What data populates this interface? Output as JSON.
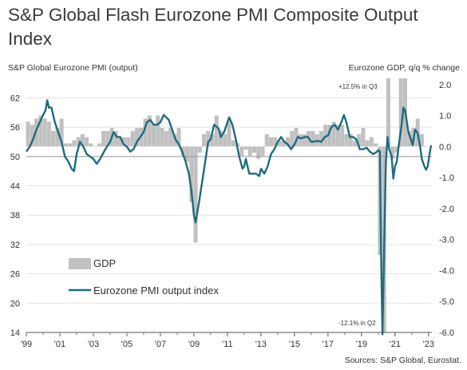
{
  "title": "S&P Global Flash Eurozone PMI Composite Output Index",
  "source": "Sources: S&P Global, Eurostat.",
  "colors": {
    "pmi_line": "#1f6b7e",
    "gdp_bars": "#c0c0c0",
    "text": "#333333"
  },
  "chart_data": {
    "type": "bar+line",
    "title": "S&P Global Flash Eurozone PMI Composite Output Index",
    "left_axis_label": "S&P Global Eurozone PMI (output)",
    "right_axis_label": "Eurozone GDP, q/q % change",
    "left_ticks": [
      "62",
      "56",
      "50",
      "44",
      "38",
      "32",
      "26",
      "20",
      "14"
    ],
    "right_ticks": [
      "2.0",
      "1.0",
      "0.0",
      "-1.0",
      "-2.0",
      "-3.0",
      "-4.0",
      "-5.0",
      "-6.0"
    ],
    "x_ticks": [
      "'99",
      "'01",
      "'03",
      "'05",
      "'07",
      "'09",
      "'11",
      "'13",
      "'15",
      "'17",
      "'19",
      "'21",
      "'23"
    ],
    "left_range": [
      14,
      66
    ],
    "right_range": [
      -6.0,
      2.2
    ],
    "x_range": [
      1999,
      2023.2
    ],
    "annotations": {
      "top": "+12.5% in Q3",
      "bottom": "-12.1% in Q2"
    },
    "legend": {
      "bars": "GDP",
      "line": "Eurozone PMI output index",
      "position": "bottom-left"
    },
    "series_line": {
      "name": "Eurozone PMI output index",
      "points": [
        [
          1999.0,
          51.0
        ],
        [
          1999.2,
          52.0
        ],
        [
          1999.4,
          53.5
        ],
        [
          1999.6,
          55.5
        ],
        [
          1999.8,
          57.0
        ],
        [
          2000.0,
          58.5
        ],
        [
          2000.15,
          59.5
        ],
        [
          2000.25,
          61.5
        ],
        [
          2000.35,
          60.0
        ],
        [
          2000.5,
          60.0
        ],
        [
          2000.7,
          57.0
        ],
        [
          2000.9,
          55.0
        ],
        [
          2001.1,
          53.0
        ],
        [
          2001.3,
          50.0
        ],
        [
          2001.5,
          49.0
        ],
        [
          2001.7,
          47.5
        ],
        [
          2001.85,
          47.0
        ],
        [
          2002.0,
          50.5
        ],
        [
          2002.2,
          53.0
        ],
        [
          2002.4,
          52.0
        ],
        [
          2002.6,
          50.5
        ],
        [
          2002.8,
          50.0
        ],
        [
          2003.0,
          49.5
        ],
        [
          2003.2,
          48.5
        ],
        [
          2003.4,
          49.5
        ],
        [
          2003.6,
          50.8
        ],
        [
          2003.8,
          52.0
        ],
        [
          2004.0,
          53.0
        ],
        [
          2004.2,
          55.0
        ],
        [
          2004.4,
          54.0
        ],
        [
          2004.6,
          54.0
        ],
        [
          2004.8,
          52.5
        ],
        [
          2005.0,
          52.0
        ],
        [
          2005.2,
          51.0
        ],
        [
          2005.4,
          51.5
        ],
        [
          2005.6,
          53.0
        ],
        [
          2005.8,
          54.0
        ],
        [
          2006.0,
          55.0
        ],
        [
          2006.2,
          57.0
        ],
        [
          2006.4,
          57.5
        ],
        [
          2006.6,
          56.5
        ],
        [
          2006.8,
          56.5
        ],
        [
          2007.0,
          57.0
        ],
        [
          2007.2,
          58.5
        ],
        [
          2007.35,
          58.0
        ],
        [
          2007.5,
          57.5
        ],
        [
          2007.7,
          55.5
        ],
        [
          2007.9,
          53.5
        ],
        [
          2008.1,
          52.5
        ],
        [
          2008.3,
          51.0
        ],
        [
          2008.5,
          49.0
        ],
        [
          2008.7,
          46.5
        ],
        [
          2008.85,
          43.0
        ],
        [
          2009.0,
          38.0
        ],
        [
          2009.1,
          36.5
        ],
        [
          2009.3,
          40.5
        ],
        [
          2009.5,
          45.0
        ],
        [
          2009.7,
          49.5
        ],
        [
          2009.85,
          53.0
        ],
        [
          2010.0,
          53.5
        ],
        [
          2010.2,
          56.5
        ],
        [
          2010.4,
          56.0
        ],
        [
          2010.5,
          55.5
        ],
        [
          2010.6,
          54.0
        ],
        [
          2010.8,
          55.0
        ],
        [
          2011.0,
          57.0
        ],
        [
          2011.1,
          58.0
        ],
        [
          2011.3,
          56.5
        ],
        [
          2011.5,
          53.5
        ],
        [
          2011.7,
          50.0
        ],
        [
          2011.9,
          47.5
        ],
        [
          2012.0,
          48.0
        ],
        [
          2012.1,
          49.5
        ],
        [
          2012.3,
          46.5
        ],
        [
          2012.5,
          46.5
        ],
        [
          2012.7,
          46.5
        ],
        [
          2012.9,
          46.0
        ],
        [
          2013.0,
          47.5
        ],
        [
          2013.2,
          46.5
        ],
        [
          2013.4,
          48.0
        ],
        [
          2013.6,
          50.5
        ],
        [
          2013.8,
          51.5
        ],
        [
          2014.0,
          53.0
        ],
        [
          2014.2,
          54.0
        ],
        [
          2014.4,
          53.0
        ],
        [
          2014.6,
          52.5
        ],
        [
          2014.8,
          51.5
        ],
        [
          2015.0,
          52.5
        ],
        [
          2015.2,
          54.0
        ],
        [
          2015.4,
          53.7
        ],
        [
          2015.6,
          54.0
        ],
        [
          2015.8,
          54.0
        ],
        [
          2016.0,
          53.0
        ],
        [
          2016.2,
          53.1
        ],
        [
          2016.4,
          53.2
        ],
        [
          2016.6,
          53.0
        ],
        [
          2016.8,
          54.0
        ],
        [
          2017.0,
          54.3
        ],
        [
          2017.2,
          56.0
        ],
        [
          2017.4,
          56.5
        ],
        [
          2017.6,
          55.5
        ],
        [
          2017.8,
          57.0
        ],
        [
          2017.95,
          58.5
        ],
        [
          2018.1,
          57.0
        ],
        [
          2018.3,
          54.0
        ],
        [
          2018.5,
          54.0
        ],
        [
          2018.7,
          53.5
        ],
        [
          2018.9,
          51.5
        ],
        [
          2019.1,
          51.5
        ],
        [
          2019.3,
          51.8
        ],
        [
          2019.5,
          51.0
        ],
        [
          2019.7,
          50.5
        ],
        [
          2019.9,
          50.9
        ],
        [
          2020.0,
          51.3
        ],
        [
          2020.1,
          51.0
        ],
        [
          2020.17,
          29.5
        ],
        [
          2020.25,
          13.6
        ],
        [
          2020.35,
          31.0
        ],
        [
          2020.45,
          48.5
        ],
        [
          2020.55,
          54.0
        ],
        [
          2020.65,
          51.5
        ],
        [
          2020.8,
          50.0
        ],
        [
          2020.9,
          45.5
        ],
        [
          2021.0,
          48.0
        ],
        [
          2021.1,
          48.8
        ],
        [
          2021.25,
          53.0
        ],
        [
          2021.4,
          56.5
        ],
        [
          2021.5,
          60.0
        ],
        [
          2021.6,
          59.5
        ],
        [
          2021.8,
          55.0
        ],
        [
          2021.95,
          53.5
        ],
        [
          2022.05,
          52.3
        ],
        [
          2022.2,
          55.5
        ],
        [
          2022.35,
          54.8
        ],
        [
          2022.5,
          52.0
        ],
        [
          2022.6,
          49.5
        ],
        [
          2022.75,
          48.0
        ],
        [
          2022.85,
          47.3
        ],
        [
          2022.95,
          48.0
        ],
        [
          2023.05,
          50.3
        ],
        [
          2023.15,
          52.3
        ]
      ]
    },
    "series_bars": {
      "name": "GDP",
      "points": [
        [
          1999.1,
          0.8
        ],
        [
          1999.35,
          0.7
        ],
        [
          1999.6,
          0.9
        ],
        [
          1999.85,
          1.0
        ],
        [
          2000.1,
          0.9
        ],
        [
          2000.35,
          0.8
        ],
        [
          2000.6,
          0.5
        ],
        [
          2000.85,
          0.6
        ],
        [
          2001.1,
          0.9
        ],
        [
          2001.35,
          0.1
        ],
        [
          2001.6,
          0.1
        ],
        [
          2001.85,
          0.2
        ],
        [
          2002.1,
          0.3
        ],
        [
          2002.35,
          0.4
        ],
        [
          2002.6,
          0.3
        ],
        [
          2002.85,
          0.1
        ],
        [
          2003.1,
          0.0
        ],
        [
          2003.35,
          0.1
        ],
        [
          2003.6,
          0.5
        ],
        [
          2003.85,
          0.5
        ],
        [
          2004.1,
          0.6
        ],
        [
          2004.35,
          0.5
        ],
        [
          2004.6,
          0.3
        ],
        [
          2004.85,
          0.3
        ],
        [
          2005.1,
          0.3
        ],
        [
          2005.35,
          0.5
        ],
        [
          2005.6,
          0.6
        ],
        [
          2005.85,
          0.6
        ],
        [
          2006.1,
          0.9
        ],
        [
          2006.35,
          1.0
        ],
        [
          2006.6,
          0.7
        ],
        [
          2006.85,
          1.0
        ],
        [
          2007.1,
          0.6
        ],
        [
          2007.35,
          0.5
        ],
        [
          2007.6,
          0.6
        ],
        [
          2007.85,
          0.4
        ],
        [
          2008.1,
          0.6
        ],
        [
          2008.35,
          -0.3
        ],
        [
          2008.6,
          -0.5
        ],
        [
          2008.85,
          -1.8
        ],
        [
          2009.1,
          -3.1
        ],
        [
          2009.35,
          -0.2
        ],
        [
          2009.6,
          0.4
        ],
        [
          2009.85,
          0.5
        ],
        [
          2010.1,
          0.4
        ],
        [
          2010.35,
          1.0
        ],
        [
          2010.6,
          0.5
        ],
        [
          2010.85,
          0.4
        ],
        [
          2011.1,
          0.8
        ],
        [
          2011.35,
          0.2
        ],
        [
          2011.6,
          0.1
        ],
        [
          2011.85,
          -0.3
        ],
        [
          2012.1,
          -0.1
        ],
        [
          2012.35,
          -0.3
        ],
        [
          2012.6,
          -0.2
        ],
        [
          2012.85,
          -0.4
        ],
        [
          2013.1,
          -0.3
        ],
        [
          2013.35,
          0.4
        ],
        [
          2013.6,
          0.3
        ],
        [
          2013.85,
          0.3
        ],
        [
          2014.1,
          0.2
        ],
        [
          2014.35,
          0.2
        ],
        [
          2014.6,
          0.3
        ],
        [
          2014.85,
          0.5
        ],
        [
          2015.1,
          0.6
        ],
        [
          2015.35,
          0.4
        ],
        [
          2015.6,
          0.4
        ],
        [
          2015.85,
          0.5
        ],
        [
          2016.1,
          0.5
        ],
        [
          2016.35,
          0.4
        ],
        [
          2016.6,
          0.5
        ],
        [
          2016.85,
          0.7
        ],
        [
          2017.1,
          0.7
        ],
        [
          2017.35,
          0.8
        ],
        [
          2017.6,
          0.7
        ],
        [
          2017.85,
          0.7
        ],
        [
          2018.1,
          0.4
        ],
        [
          2018.35,
          0.4
        ],
        [
          2018.6,
          0.2
        ],
        [
          2018.85,
          0.4
        ],
        [
          2019.1,
          0.6
        ],
        [
          2019.35,
          0.2
        ],
        [
          2019.6,
          0.3
        ],
        [
          2019.85,
          0.1
        ],
        [
          2020.1,
          -3.5
        ],
        [
          2020.35,
          -6.0
        ],
        [
          2020.6,
          2.2
        ],
        [
          2020.85,
          -0.4
        ],
        [
          2021.1,
          -0.2
        ],
        [
          2021.35,
          2.2
        ],
        [
          2021.6,
          2.2
        ],
        [
          2021.85,
          0.5
        ],
        [
          2022.1,
          0.6
        ],
        [
          2022.35,
          0.9
        ],
        [
          2022.6,
          0.4
        ],
        [
          2022.85,
          0.0
        ]
      ]
    }
  }
}
